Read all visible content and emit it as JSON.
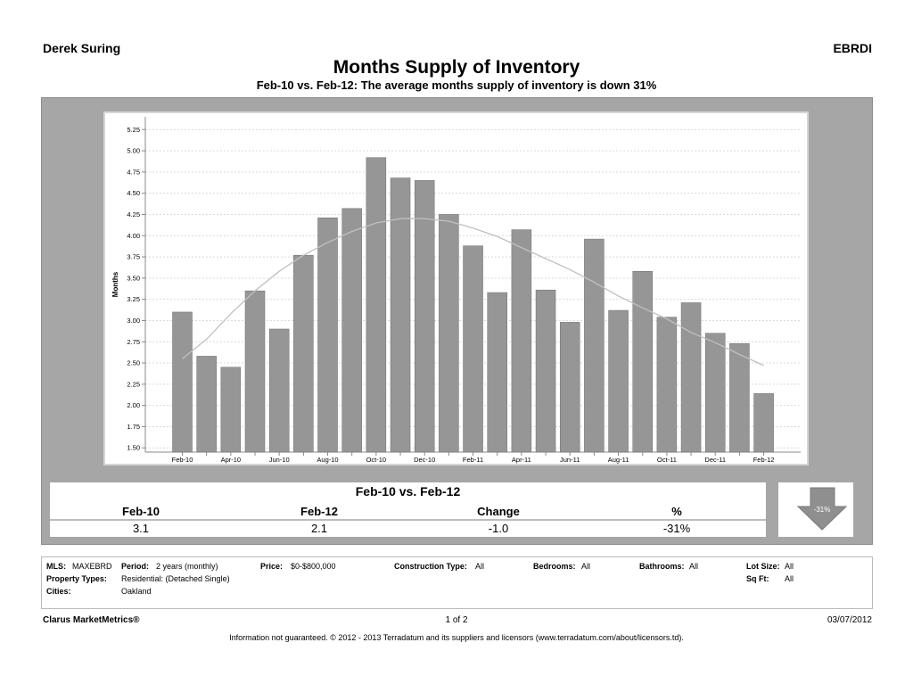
{
  "header": {
    "agent": "Derek Suring",
    "mls": "EBRDI",
    "title": "Months Supply of Inventory",
    "subtitle": "Feb-10 vs. Feb-12:  The average months supply of inventory is down 31%"
  },
  "chart_data": {
    "type": "bar",
    "ylabel": "Months",
    "ylim": [
      1.45,
      5.4
    ],
    "yticks": [
      "1.50",
      "1.75",
      "2.00",
      "2.25",
      "2.50",
      "2.75",
      "3.00",
      "3.25",
      "3.50",
      "3.75",
      "4.00",
      "4.25",
      "4.50",
      "4.75",
      "5.00",
      "5.25"
    ],
    "categories": [
      "Feb-10",
      "Mar-10",
      "Apr-10",
      "May-10",
      "Jun-10",
      "Jul-10",
      "Aug-10",
      "Sep-10",
      "Oct-10",
      "Nov-10",
      "Dec-10",
      "Jan-11",
      "Feb-11",
      "Mar-11",
      "Apr-11",
      "May-11",
      "Jun-11",
      "Jul-11",
      "Aug-11",
      "Sep-11",
      "Oct-11",
      "Nov-11",
      "Dec-11",
      "Jan-12",
      "Feb-12"
    ],
    "xtick_labels": [
      "Feb-10",
      "",
      "Apr-10",
      "",
      "Jun-10",
      "",
      "Aug-10",
      "",
      "Oct-10",
      "",
      "Dec-10",
      "",
      "Feb-11",
      "",
      "Apr-11",
      "",
      "Jun-11",
      "",
      "Aug-11",
      "",
      "Oct-11",
      "",
      "Dec-11",
      "",
      "Feb-12"
    ],
    "values": [
      3.1,
      2.58,
      2.45,
      3.35,
      2.9,
      3.77,
      4.21,
      4.32,
      4.92,
      4.68,
      4.65,
      4.25,
      3.88,
      3.33,
      4.07,
      3.36,
      2.98,
      3.96,
      3.12,
      3.58,
      3.04,
      3.21,
      2.85,
      2.73,
      2.14
    ],
    "trend": [
      2.55,
      2.78,
      3.08,
      3.35,
      3.58,
      3.77,
      3.92,
      4.05,
      4.15,
      4.2,
      4.2,
      4.17,
      4.09,
      3.99,
      3.86,
      3.73,
      3.6,
      3.45,
      3.29,
      3.15,
      3.02,
      2.86,
      2.74,
      2.6,
      2.47
    ],
    "grid": true,
    "colors": {
      "bar": "#969696",
      "bar_edge": "#6e6e6e",
      "trend": "#c0c0c0"
    }
  },
  "summary": {
    "title": "Feb-10 vs. Feb-12",
    "headers": [
      "Feb-10",
      "Feb-12",
      "Change",
      "%"
    ],
    "values": [
      "3.1",
      "2.1",
      "-1.0",
      "-31%"
    ],
    "badge": "-31%"
  },
  "filters": {
    "mls_label": "MLS:",
    "mls_value": "MAXEBRD",
    "period_label": "Period:",
    "period_value": "2 years (monthly)",
    "price_label": "Price:",
    "price_value": "$0-$800,000",
    "construction_label": "Construction Type:",
    "construction_value": "All",
    "bedrooms_label": "Bedrooms:",
    "bedrooms_value": "All",
    "bathrooms_label": "Bathrooms:",
    "bathrooms_value": "All",
    "lotsize_label": "Lot Size:",
    "lotsize_value": "All",
    "proptypes_label": "Property Types:",
    "proptypes_value": "Residential: (Detached Single)",
    "sqft_label": "Sq Ft:",
    "sqft_value": "All",
    "cities_label": "Cities:",
    "cities_value": "Oakland"
  },
  "footer": {
    "brand": "Clarus MarketMetrics®",
    "page": "1 of 2",
    "date": "03/07/2012",
    "disclaimer": "Information not guaranteed.  © 2012 - 2013 Terradatum and its suppliers and licensors (www.terradatum.com/about/licensors.td)."
  }
}
